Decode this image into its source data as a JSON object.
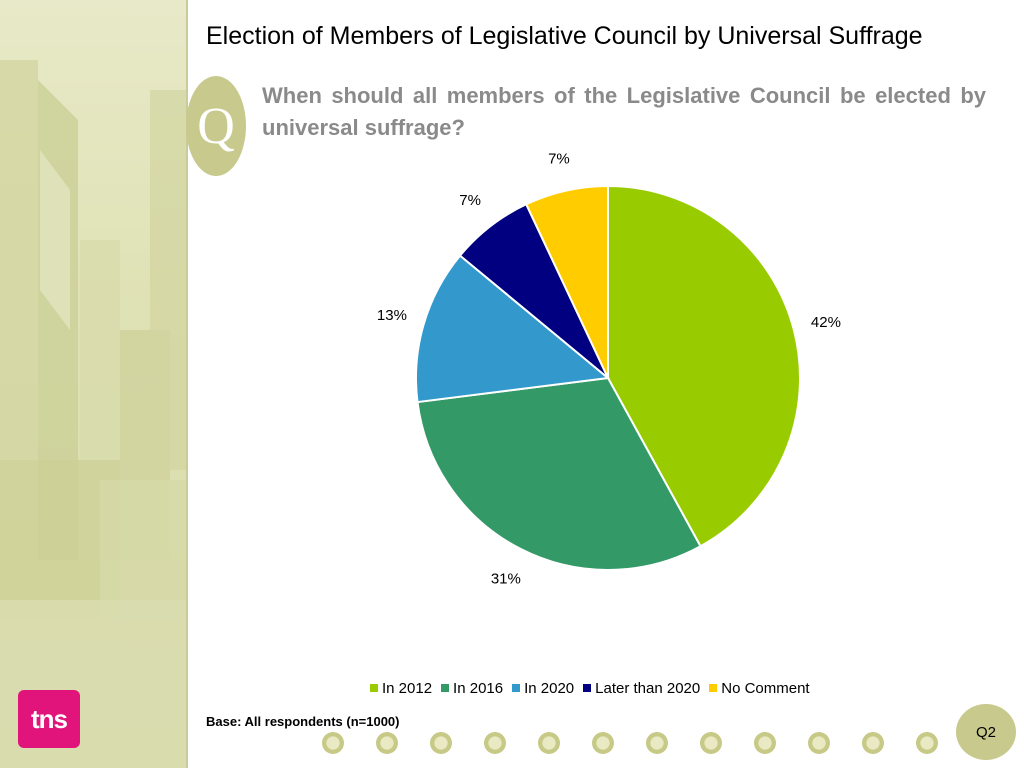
{
  "title": "Election of Members of Legislative Council by Universal Suffrage",
  "q_letter": "Q",
  "question": "When should all members of the Legislative Council be elected by universal suffrage?",
  "logo_text": "tns",
  "base_note": "Base: All respondents (n=1000)",
  "page_label": "Q2",
  "colors": {
    "accent": "#c8c98c",
    "question_text": "#8a8a8a",
    "logo": "#e0147a"
  },
  "chart_data": {
    "type": "pie",
    "title": "",
    "categories": [
      "In 2012",
      "In 2016",
      "In 2020",
      "Later than 2020",
      "No Comment"
    ],
    "values": [
      42,
      31,
      13,
      7,
      7
    ],
    "labels": [
      "42%",
      "31%",
      "13%",
      "7%",
      "7%"
    ],
    "colors": [
      "#99cc00",
      "#339966",
      "#3399cc",
      "#000080",
      "#ffcc00"
    ],
    "legend_position": "bottom"
  }
}
